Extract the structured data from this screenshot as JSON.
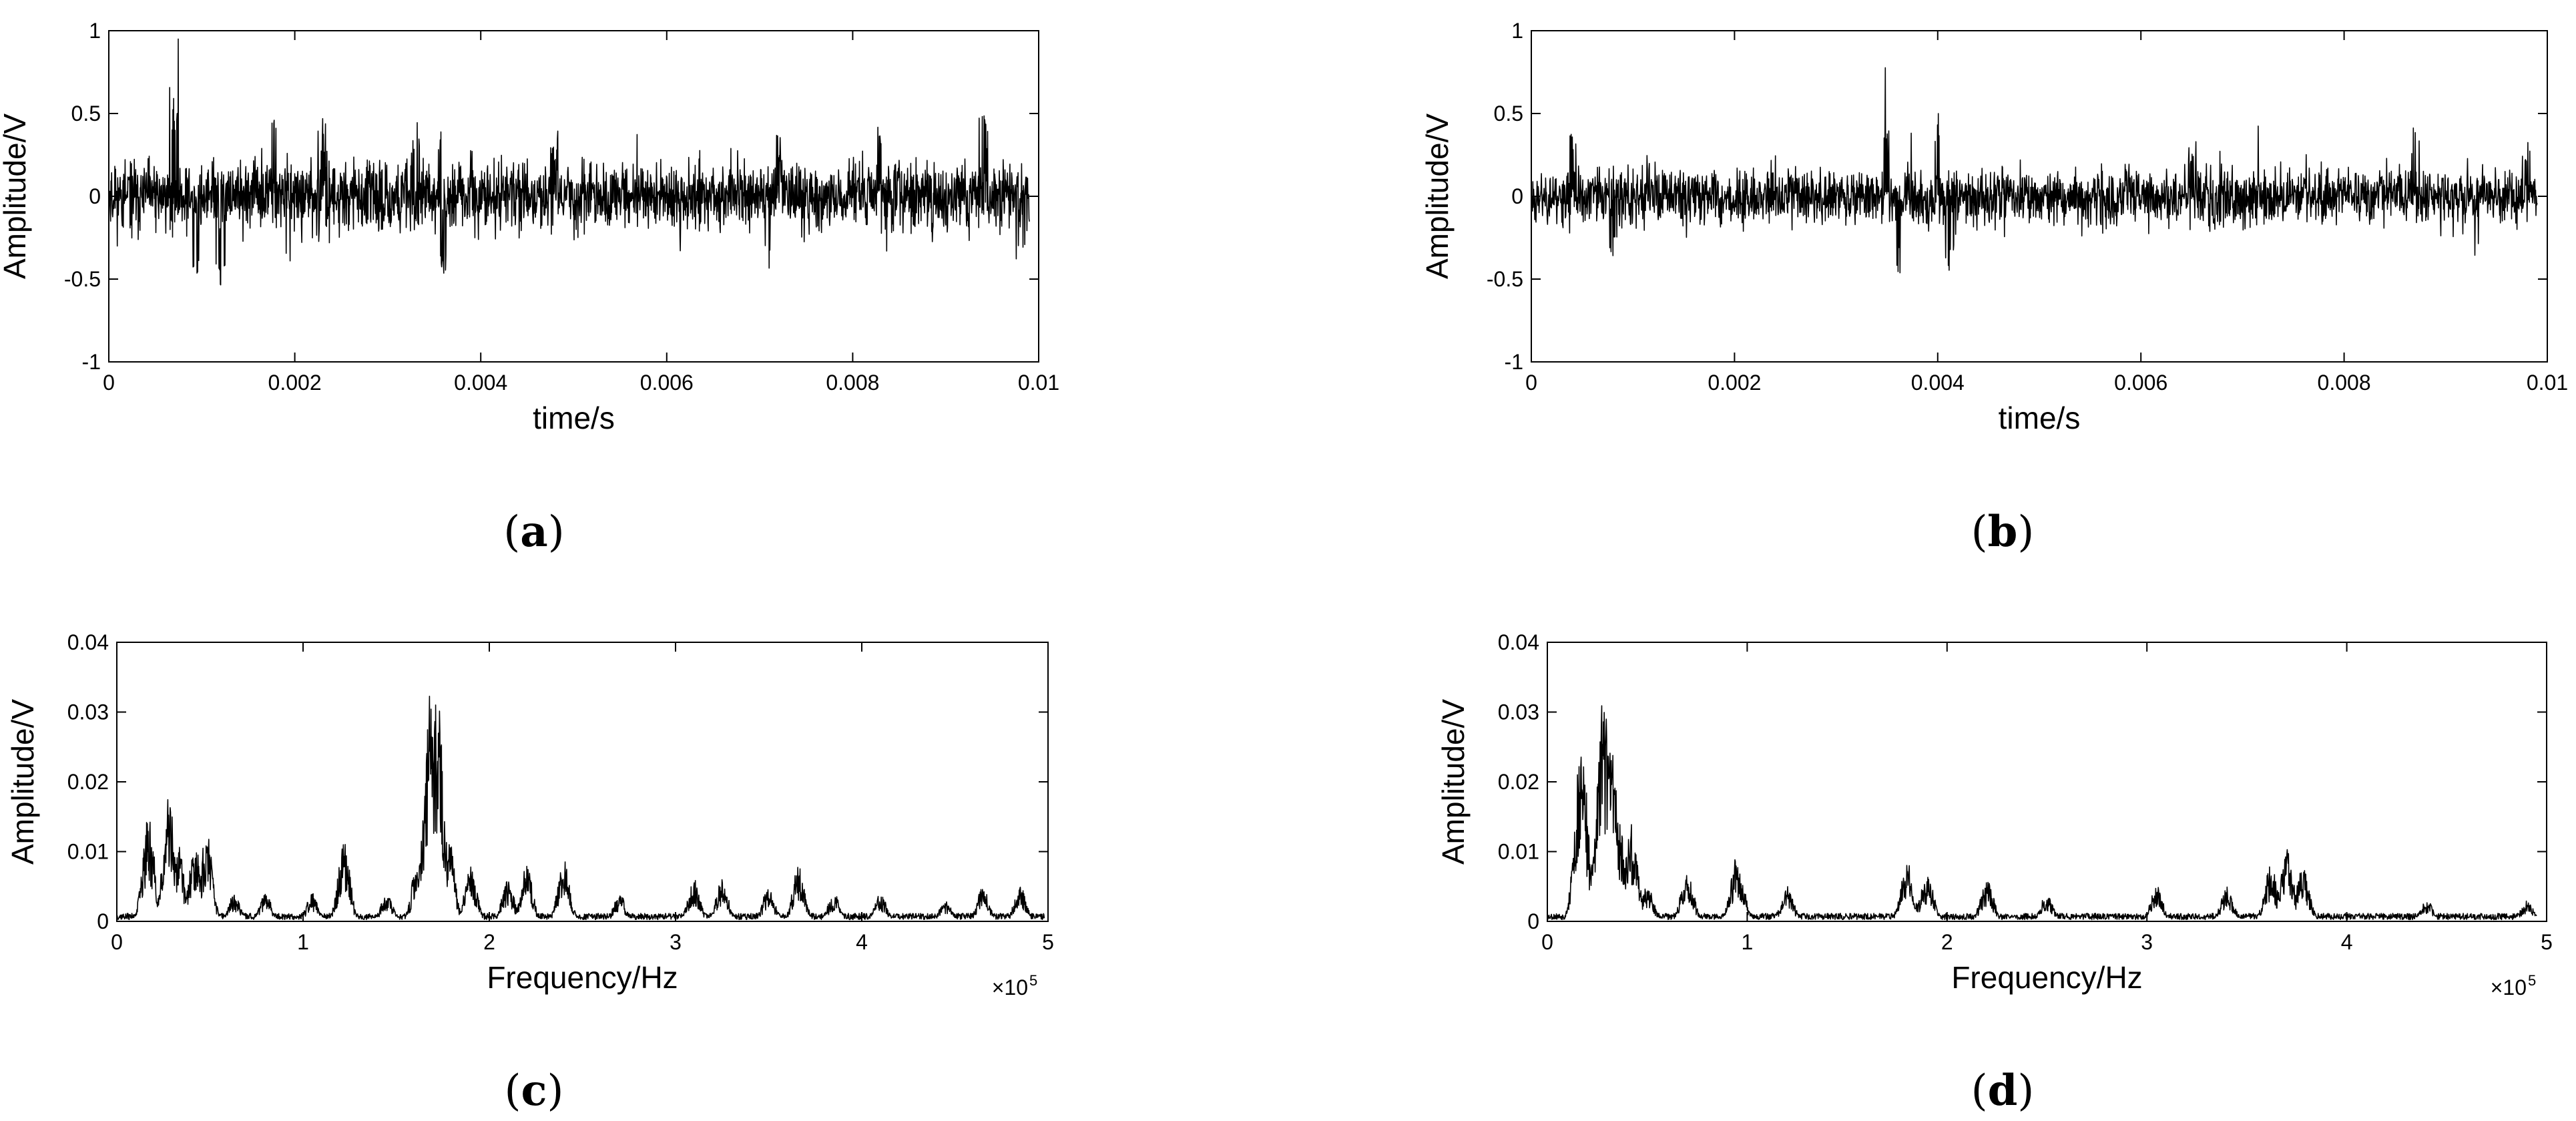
{
  "chart_data": [
    {
      "panel": "a",
      "type": "line",
      "caption": "(a)",
      "xlabel": "time/s",
      "ylabel": "Amplitude/V",
      "xlim": [
        0,
        0.01
      ],
      "ylim": [
        -1,
        1
      ],
      "xticks": [
        "0",
        "0.002",
        "0.004",
        "0.006",
        "0.008",
        "0.01"
      ],
      "yticks": [
        "-1",
        "-0.5",
        "0",
        "0.5",
        "1"
      ],
      "x_exponent": "",
      "signal": {
        "x_end": 0.0099,
        "noise_level": 0.13,
        "peaks": [
          [
            0.0007,
            0.67
          ],
          [
            0.00095,
            -0.5
          ],
          [
            0.0012,
            -0.62
          ],
          [
            0.0018,
            0.5
          ],
          [
            0.0023,
            0.47
          ],
          [
            0.0033,
            0.45
          ],
          [
            0.0036,
            0.49
          ],
          [
            0.0036,
            -0.5
          ],
          [
            0.0048,
            0.4
          ],
          [
            0.0071,
            -0.53
          ],
          [
            0.0072,
            0.37
          ],
          [
            0.0083,
            0.48
          ],
          [
            0.0094,
            0.5
          ],
          [
            0.0098,
            -0.48
          ]
        ]
      }
    },
    {
      "panel": "b",
      "type": "line",
      "caption": "(b)",
      "xlabel": "time/s",
      "ylabel": "Amplitude/V",
      "xlim": [
        0,
        0.01
      ],
      "ylim": [
        -1,
        1
      ],
      "xticks": [
        "0",
        "0.002",
        "0.004",
        "0.006",
        "0.008",
        "0.01"
      ],
      "yticks": [
        "-1",
        "-0.5",
        "0",
        "0.5",
        "1"
      ],
      "x_exponent": "",
      "signal": {
        "x_end": 0.0099,
        "noise_level": 0.11,
        "peaks": [
          [
            0.0004,
            0.42
          ],
          [
            0.0008,
            -0.4
          ],
          [
            0.0035,
            0.4
          ],
          [
            0.0036,
            -0.48
          ],
          [
            0.004,
            0.55
          ],
          [
            0.0041,
            -0.45
          ],
          [
            0.0065,
            0.35
          ],
          [
            0.0087,
            0.45
          ],
          [
            0.0093,
            -0.45
          ],
          [
            0.0098,
            0.33
          ]
        ]
      }
    },
    {
      "panel": "c",
      "type": "line",
      "caption": "(c)",
      "xlabel": "Frequency/Hz",
      "ylabel": "Amplitude/V",
      "xlim": [
        0,
        5
      ],
      "ylim": [
        0,
        0.04
      ],
      "xticks": [
        "0",
        "1",
        "2",
        "3",
        "4",
        "5"
      ],
      "yticks": [
        "0",
        "0.01",
        "0.02",
        "0.03",
        "0.04"
      ],
      "x_exponent": "×10",
      "x_exponent_power": "5",
      "spectrum": {
        "x_end": 4.98,
        "peaks": [
          [
            0.17,
            0.015
          ],
          [
            0.28,
            0.018
          ],
          [
            0.33,
            0.011
          ],
          [
            0.42,
            0.011
          ],
          [
            0.48,
            0.013
          ],
          [
            0.63,
            0.004
          ],
          [
            0.8,
            0.004
          ],
          [
            1.05,
            0.004
          ],
          [
            1.22,
            0.0115
          ],
          [
            1.45,
            0.004
          ],
          [
            1.62,
            0.01
          ],
          [
            1.68,
            0.033
          ],
          [
            1.72,
            0.036
          ],
          [
            1.78,
            0.013
          ],
          [
            1.9,
            0.008
          ],
          [
            2.1,
            0.006
          ],
          [
            2.2,
            0.008
          ],
          [
            2.4,
            0.009
          ],
          [
            2.7,
            0.004
          ],
          [
            3.1,
            0.006
          ],
          [
            3.25,
            0.006
          ],
          [
            3.5,
            0.005
          ],
          [
            3.66,
            0.008
          ],
          [
            3.85,
            0.004
          ],
          [
            4.1,
            0.004
          ],
          [
            4.45,
            0.003
          ],
          [
            4.65,
            0.005
          ],
          [
            4.85,
            0.005
          ]
        ]
      }
    },
    {
      "panel": "d",
      "type": "line",
      "caption": "(d)",
      "xlabel": "Frequency/Hz",
      "ylabel": "Amplitude/V",
      "xlim": [
        0,
        5
      ],
      "ylim": [
        0,
        0.04
      ],
      "xticks": [
        "0",
        "1",
        "2",
        "3",
        "4",
        "5"
      ],
      "yticks": [
        "0",
        "0.01",
        "0.02",
        "0.03",
        "0.04"
      ],
      "x_exponent": "×10",
      "x_exponent_power": "5",
      "spectrum": {
        "x_end": 4.95,
        "peaks": [
          [
            0.17,
            0.026
          ],
          [
            0.25,
            0.012
          ],
          [
            0.28,
            0.033
          ],
          [
            0.32,
            0.028
          ],
          [
            0.36,
            0.014
          ],
          [
            0.42,
            0.014
          ],
          [
            0.5,
            0.005
          ],
          [
            0.7,
            0.007
          ],
          [
            0.95,
            0.0095
          ],
          [
            1.2,
            0.005
          ],
          [
            1.8,
            0.009
          ],
          [
            1.9,
            0.007
          ],
          [
            2.2,
            0.006
          ],
          [
            2.5,
            0.004
          ],
          [
            3.05,
            0.005
          ],
          [
            3.4,
            0.005
          ],
          [
            3.62,
            0.008
          ],
          [
            3.7,
            0.011
          ],
          [
            3.78,
            0.008
          ],
          [
            4.4,
            0.003
          ],
          [
            4.9,
            0.003
          ]
        ]
      }
    }
  ]
}
